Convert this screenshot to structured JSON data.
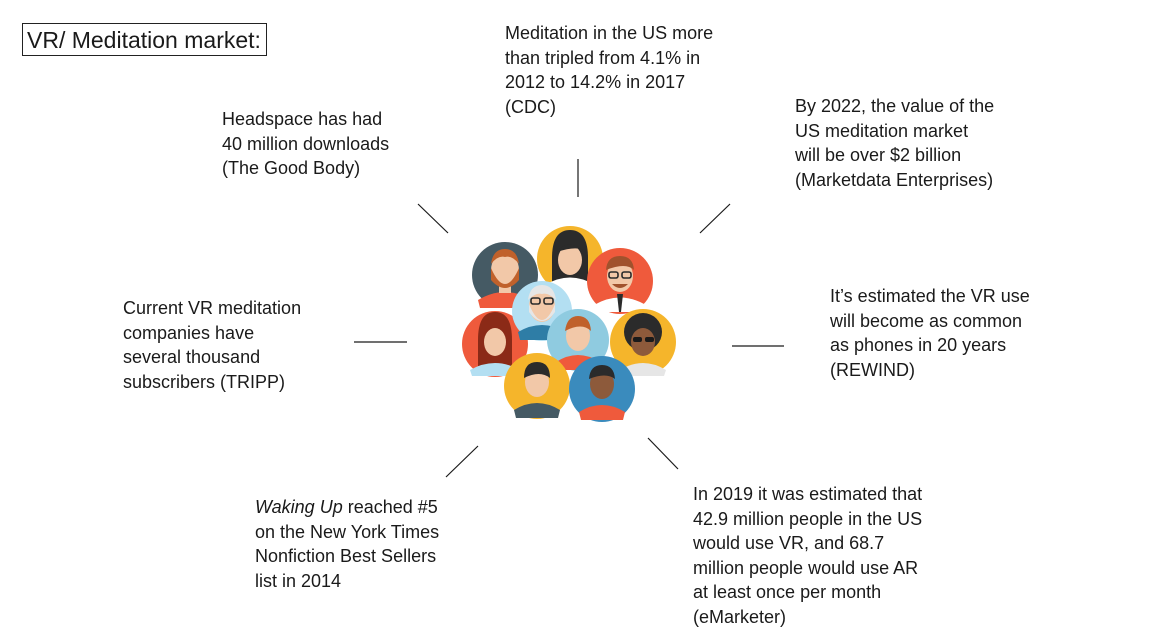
{
  "title": "VR/ Meditation market:",
  "facts": {
    "meditation_us": {
      "lines": [
        "Meditation in the US more",
        "than tripled from 4.1% in",
        "2012 to 14.2% in 2017",
        "(CDC)"
      ]
    },
    "headspace": {
      "lines": [
        "Headspace has had",
        "40 million downloads",
        "(The Good Body)"
      ]
    },
    "market_value": {
      "lines": [
        "By 2022, the value of the",
        "US meditation market",
        "will be over $2 billion",
        "(Marketdata Enterprises)"
      ]
    },
    "current_vr": {
      "lines": [
        "Current VR meditation",
        "companies have",
        "several thousand",
        "subscribers (TRIPP)"
      ]
    },
    "vr_phones": {
      "lines": [
        "It’s estimated the VR use",
        "will become as common",
        "as phones in 20 years",
        "(REWIND)"
      ]
    },
    "waking_up": {
      "book": "Waking Up",
      "rest": " reached #5",
      "lines": [
        "on the New York Times",
        "Nonfiction Best Sellers",
        "list in 2014"
      ]
    },
    "emarketer": {
      "lines": [
        "In 2019 it was estimated that",
        "42.9 million people in the US",
        "would use VR, and 68.7",
        "million people would use AR",
        "at least once per month",
        "(eMarketer)"
      ]
    }
  },
  "colors": {
    "avatar_backgrounds": [
      "#455a64",
      "#f5b52b",
      "#ef5a3c",
      "#b3dff2",
      "#ef5a3c",
      "#8fcbe0",
      "#f5b52b",
      "#f5b52b",
      "#3a8bbd"
    ],
    "text": "#1a1a1a"
  },
  "icons": [
    "people-group-illustration"
  ]
}
